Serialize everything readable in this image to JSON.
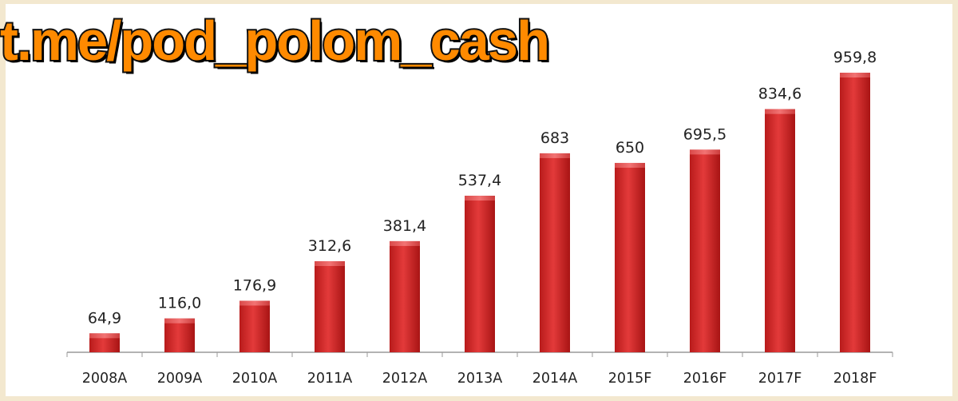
{
  "watermark": "t.me/pod_polom_cash",
  "colors": {
    "bar_light": "#e33a3a",
    "bar_dark": "#a81414",
    "bar_top": "#f06a6a",
    "axis": "#9a9a9a",
    "watermark_fill": "#ff8a00"
  },
  "chart_data": {
    "type": "bar",
    "categories": [
      "2008A",
      "2009A",
      "2010A",
      "2011A",
      "2012A",
      "2013A",
      "2014A",
      "2015F",
      "2016F",
      "2017F",
      "2018F"
    ],
    "values": [
      64.9,
      116.0,
      176.9,
      312.6,
      381.4,
      537.4,
      683,
      650,
      695.5,
      834.6,
      959.8
    ],
    "value_labels": [
      "64,9",
      "116,0",
      "176,9",
      "312,6",
      "381,4",
      "537,4",
      "683",
      "650",
      "695,5",
      "834,6",
      "959,8"
    ],
    "ylim": [
      0,
      959.8
    ],
    "grid": false,
    "legend": "none"
  }
}
